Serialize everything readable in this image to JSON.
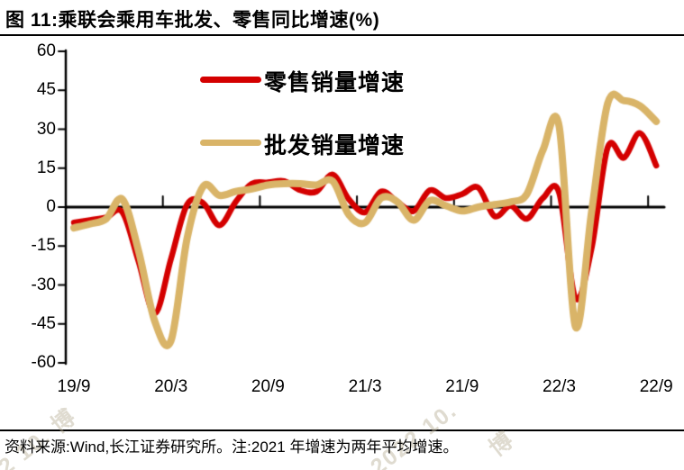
{
  "title": "图 11:乘联会乘用车批发、零售同比增速(%)",
  "footer": {
    "text": "资料来源:Wind,长江证券研究所。注:2021 年增速为两年平均增速。"
  },
  "watermark": {
    "fragments": [
      "22 10. 博",
      "2022 10.",
      "博"
    ]
  },
  "colors": {
    "retail": "#d40000",
    "wholesale": "#d9b468",
    "axis": "#000000"
  },
  "chart_data": {
    "type": "line",
    "title": "乘联会乘用车批发、零售同比增速(%)",
    "ylabel": "同比增速(%)",
    "ylim": [
      -60,
      60
    ],
    "y_ticks": [
      60,
      45,
      30,
      15,
      0,
      -15,
      -30,
      -45,
      -60
    ],
    "x_tick_labels": [
      "19/9",
      "20/3",
      "20/9",
      "21/3",
      "21/9",
      "22/3",
      "22/9"
    ],
    "grid": false,
    "legend_position": "upper-left-inside",
    "x": [
      "19/9",
      "19/10",
      "19/11",
      "19/12",
      "20/1",
      "20/2",
      "20/3",
      "20/4",
      "20/5",
      "20/6",
      "20/7",
      "20/8",
      "20/9",
      "20/10",
      "20/11",
      "20/12",
      "21/1",
      "21/2",
      "21/3",
      "21/4",
      "21/5",
      "21/6",
      "21/7",
      "21/8",
      "21/9",
      "21/10",
      "21/11",
      "21/12",
      "22/1",
      "22/2",
      "22/3",
      "22/4",
      "22/5",
      "22/6",
      "22/7",
      "22/8",
      "22/9"
    ],
    "series": [
      {
        "name": "零售销量增速",
        "color": "#d40000",
        "values": [
          -6,
          -5,
          -4,
          -2,
          -21,
          -41,
          -20,
          1,
          1.5,
          -7,
          2,
          9,
          9.5,
          10,
          6.5,
          6,
          12.5,
          3,
          -2,
          6,
          2,
          -1.5,
          6.5,
          3.5,
          5,
          7.5,
          -3.5,
          0.5,
          -4.5,
          3.5,
          5.5,
          -35,
          -16,
          23,
          19,
          28.5,
          16
        ]
      },
      {
        "name": "批发销量增速",
        "color": "#d9b468",
        "values": [
          -8,
          -6.5,
          -4.5,
          3,
          -17,
          -44,
          -51.5,
          -12,
          8,
          4.5,
          6,
          7,
          8.5,
          9,
          9,
          8.5,
          10,
          -3,
          -6,
          3.5,
          2,
          -5,
          2.5,
          0.5,
          -1.5,
          0,
          1,
          2,
          5,
          22,
          31,
          -46,
          -2,
          40,
          41,
          39,
          33
        ]
      }
    ]
  }
}
